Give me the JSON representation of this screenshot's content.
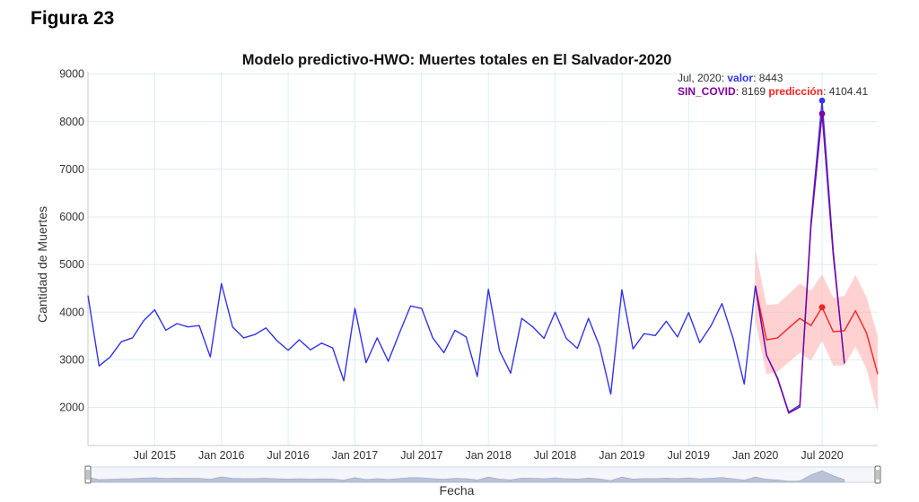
{
  "figure_label": "Figura 23",
  "chart_data": {
    "type": "line",
    "title": "Modelo predictivo-HWO: Muertes totales en El Salvador-2020",
    "xlabel": "Fecha",
    "ylabel": "Cantidad de Muertes",
    "ylim": [
      1200,
      9050
    ],
    "xlim": [
      "2015-01",
      "2020-12"
    ],
    "grid": true,
    "y_ticks": [
      "2000",
      "3000",
      "4000",
      "5000",
      "6000",
      "7000",
      "8000",
      "9000"
    ],
    "y_tick_values": [
      2000,
      3000,
      4000,
      5000,
      6000,
      7000,
      8000,
      9000
    ],
    "x_ticks": [
      "Jul 2015",
      "Jan 2016",
      "Jul 2016",
      "Jan 2017",
      "Jul 2017",
      "Jan 2018",
      "Jul 2018",
      "Jan 2019",
      "Jul 2019",
      "Jan 2020",
      "Jul 2020"
    ],
    "x_tick_months": [
      "2015-07",
      "2016-01",
      "2016-07",
      "2017-01",
      "2017-07",
      "2018-01",
      "2018-07",
      "2019-01",
      "2019-07",
      "2020-01",
      "2020-07"
    ],
    "series": [
      {
        "name": "valor",
        "color": "#3333ee",
        "x": [
          "2015-01",
          "2015-02",
          "2015-03",
          "2015-04",
          "2015-05",
          "2015-06",
          "2015-07",
          "2015-08",
          "2015-09",
          "2015-10",
          "2015-11",
          "2015-12",
          "2016-01",
          "2016-02",
          "2016-03",
          "2016-04",
          "2016-05",
          "2016-06",
          "2016-07",
          "2016-08",
          "2016-09",
          "2016-10",
          "2016-11",
          "2016-12",
          "2017-01",
          "2017-02",
          "2017-03",
          "2017-04",
          "2017-05",
          "2017-06",
          "2017-07",
          "2017-08",
          "2017-09",
          "2017-10",
          "2017-11",
          "2017-12",
          "2018-01",
          "2018-02",
          "2018-03",
          "2018-04",
          "2018-05",
          "2018-06",
          "2018-07",
          "2018-08",
          "2018-09",
          "2018-10",
          "2018-11",
          "2018-12",
          "2019-01",
          "2019-02",
          "2019-03",
          "2019-04",
          "2019-05",
          "2019-06",
          "2019-07",
          "2019-08",
          "2019-09",
          "2019-10",
          "2019-11",
          "2019-12",
          "2020-01",
          "2020-02",
          "2020-03",
          "2020-04",
          "2020-05",
          "2020-06",
          "2020-07",
          "2020-08",
          "2020-09"
        ],
        "values": [
          4350,
          2870,
          3060,
          3380,
          3460,
          3820,
          4050,
          3620,
          3760,
          3690,
          3720,
          3060,
          4600,
          3690,
          3460,
          3530,
          3670,
          3400,
          3200,
          3420,
          3210,
          3350,
          3250,
          2560,
          4080,
          2940,
          3460,
          2970,
          3560,
          4130,
          4080,
          3460,
          3150,
          3620,
          3480,
          2650,
          4480,
          3190,
          2720,
          3870,
          3690,
          3450,
          4000,
          3450,
          3240,
          3870,
          3280,
          2280,
          4470,
          3230,
          3550,
          3510,
          3810,
          3480,
          3990,
          3360,
          3710,
          4180,
          3450,
          2490,
          4550,
          3100,
          2620,
          1900,
          2050,
          5900,
          8443,
          5300,
          2920
        ]
      },
      {
        "name": "SIN_COVID",
        "color": "#8000a0",
        "x": [
          "2020-01",
          "2020-02",
          "2020-03",
          "2020-04",
          "2020-05",
          "2020-06",
          "2020-07",
          "2020-08",
          "2020-09"
        ],
        "values": [
          4550,
          3100,
          2600,
          1880,
          2010,
          5800,
          8169,
          5200,
          2950
        ]
      },
      {
        "name": "predicción",
        "color": "#ff2020",
        "x": [
          "2020-01",
          "2020-02",
          "2020-03",
          "2020-04",
          "2020-05",
          "2020-06",
          "2020-07",
          "2020-08",
          "2020-09",
          "2020-10",
          "2020-11",
          "2020-12"
        ],
        "values": [
          4550,
          3420,
          3460,
          3670,
          3870,
          3720,
          4104.41,
          3590,
          3610,
          4030,
          3560,
          2700
        ],
        "lower": [
          3800,
          2700,
          2750,
          2950,
          3150,
          2980,
          3400,
          2880,
          2880,
          3280,
          2810,
          1900
        ],
        "upper": [
          5300,
          4150,
          4170,
          4380,
          4600,
          4450,
          4800,
          4300,
          4340,
          4780,
          4310,
          3500
        ]
      }
    ],
    "hover": {
      "date": "Jul, 2020",
      "valor_label": "valor",
      "valor": "8443",
      "sin_covid_label": "SIN_COVID",
      "sin_covid": "8169",
      "prediccion_label": "predicción",
      "prediccion": "4104.41"
    },
    "range_slider": {
      "min": "2015-01",
      "max": "2020-12"
    }
  }
}
